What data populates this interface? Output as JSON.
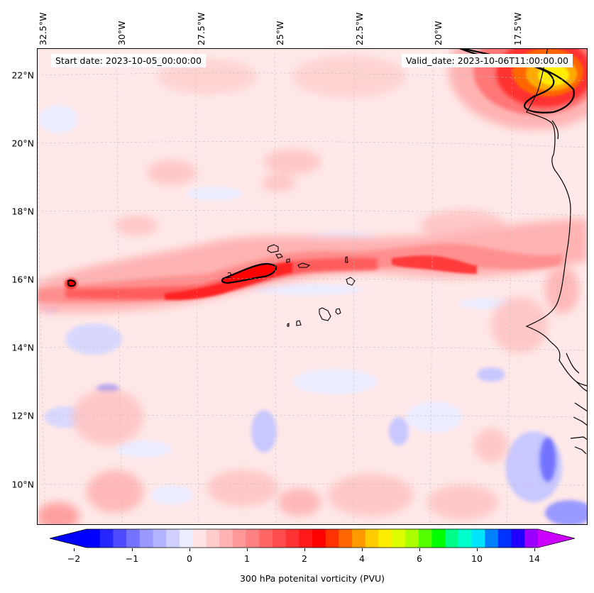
{
  "map": {
    "info": {
      "start_date": "Start date: 2023-10-05_00:00:00",
      "valid_date": "Valid_date: 2023-10-06T11:00:00.00"
    },
    "longitude_labels": [
      "32.5°W",
      "30°W",
      "27.5°W",
      "25°W",
      "22.5°W",
      "20°W",
      "17.5°W"
    ],
    "latitude_labels": [
      "22°N",
      "20°N",
      "18°N",
      "16°N",
      "14°N",
      "12°N",
      "10°N"
    ],
    "extent": {
      "lon_min": -33.0,
      "lon_max": -15.5,
      "lat_min": 8.9,
      "lat_max": 22.8
    },
    "features": [
      {
        "name": "Cape Verde Islands",
        "type": "coastline"
      },
      {
        "name": "West African coast",
        "type": "coastline"
      },
      {
        "name": "PV maximum over Western Sahara",
        "type": "field-maximum",
        "contour": "2 PVU"
      },
      {
        "name": "PV filament near 16°N",
        "type": "field-maximum",
        "contour": "2 PVU"
      }
    ],
    "contour_label": "2"
  },
  "colorbar": {
    "label": "300 hPa potenital vorticity (PVU)",
    "ticks": [
      "−2",
      "−1",
      "0",
      "1",
      "2",
      "4",
      "6",
      "10",
      "14"
    ],
    "colors": [
      "#0000ff",
      "#2626ff",
      "#4d4dff",
      "#7373ff",
      "#9999ff",
      "#b3b3ff",
      "#d0d0ff",
      "#ececff",
      "#ffe5e5",
      "#ffcccc",
      "#ffb3b3",
      "#ff9999",
      "#ff8080",
      "#ff6666",
      "#ff4d4d",
      "#ff3333",
      "#ff1a1a",
      "#ff0000",
      "#ff3300",
      "#ff6600",
      "#ff9900",
      "#ffcc00",
      "#ffee00",
      "#ddff00",
      "#aaff00",
      "#55ff00",
      "#00ff00",
      "#00ff88",
      "#00ffcc",
      "#00e5ff",
      "#0080ff",
      "#0033ff",
      "#2200ff",
      "#9900ff"
    ],
    "extend_low_color": "#0000ff",
    "extend_high_color": "#cc00ff"
  }
}
